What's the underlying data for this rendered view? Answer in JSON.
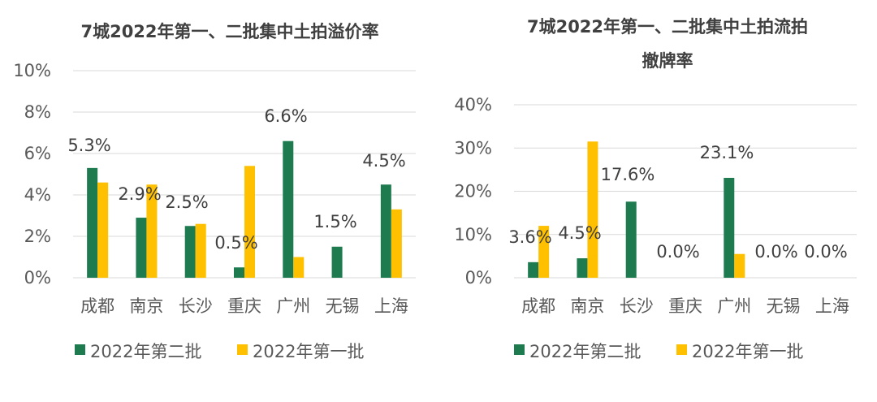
{
  "colors": {
    "second_batch": "#1E7B4F",
    "first_batch": "#FFC000"
  },
  "chart_data": [
    {
      "type": "bar",
      "title": "7城2022年第一、二批集中土拍溢价率",
      "categories": [
        "成都",
        "南京",
        "长沙",
        "重庆",
        "广州",
        "无锡",
        "上海"
      ],
      "ylim": [
        0,
        10
      ],
      "yticks": [
        0,
        2,
        4,
        6,
        8,
        10
      ],
      "ytick_labels": [
        "0%",
        "2%",
        "4%",
        "6%",
        "8%",
        "10%"
      ],
      "grid": true,
      "legend_position": "bottom",
      "series": [
        {
          "name": "2022年第二批",
          "values": [
            5.3,
            2.9,
            2.5,
            0.5,
            6.6,
            1.5,
            4.5
          ]
        },
        {
          "name": "2022年第一批",
          "values": [
            4.6,
            4.5,
            2.6,
            5.4,
            1.0,
            0,
            3.3
          ]
        }
      ],
      "data_labels": [
        "5.3%",
        "2.9%",
        "2.5%",
        "0.5%",
        "6.6%",
        "1.5%",
        "4.5%"
      ]
    },
    {
      "type": "bar",
      "title": "7城2022年第一、二批集中土拍流拍撤牌率",
      "categories": [
        "成都",
        "南京",
        "长沙",
        "重庆",
        "广州",
        "无锡",
        "上海"
      ],
      "ylim": [
        0,
        40
      ],
      "yticks": [
        0,
        10,
        20,
        30,
        40
      ],
      "ytick_labels": [
        "0%",
        "10%",
        "20%",
        "30%",
        "40%"
      ],
      "grid": true,
      "legend_position": "bottom",
      "series": [
        {
          "name": "2022年第二批",
          "values": [
            3.6,
            4.5,
            17.6,
            0.0,
            23.1,
            0.0,
            0.0
          ]
        },
        {
          "name": "2022年第一批",
          "values": [
            12.0,
            31.5,
            0,
            0,
            5.5,
            0,
            0
          ]
        }
      ],
      "data_labels": [
        "3.6%",
        "4.5%",
        "17.6%",
        "0.0%",
        "23.1%",
        "0.0%",
        "0.0%"
      ]
    }
  ]
}
